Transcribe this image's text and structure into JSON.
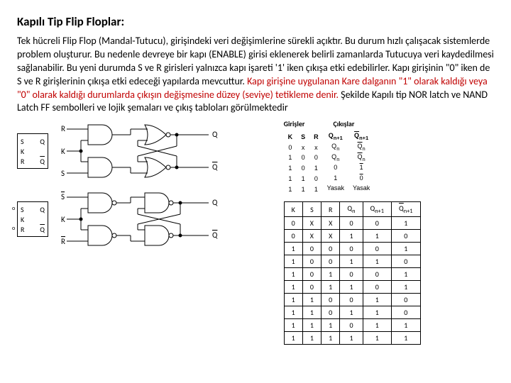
{
  "title": "Kapılı Tip Flip Floplar:",
  "paragraph_plain1": "Tek hücreli Flip Flop (Mandal-Tutucu), girişindeki veri değişimlerine sürekli açıktır. Bu durum hızlı çalışacak sistemlerde problem oluşturur. Bu nedenle devreye bir kapı (ENABLE) girisi eklenerek belirli zamanlarda Tutucuya veri kaydedilmesi sağlanabilir. Bu yeni durumda S ve R girisleri yalnızca kapı işareti '1' iken çıkışa etki edebilirler. Kapı girişinin \"0\" iken de S ve R girişlerinin çıkışa etki edeceği yapılarda mevcuttur. ",
  "paragraph_red": "Kapı girişine uygulanan Kare dalganın \"1\" olarak kaldığı veya \"0\" olarak kaldığı durumlarda çıkışın değişmesine düzey (seviye) tetikleme denir. ",
  "paragraph_plain2": "Şekilde Kapılı tip NOR latch ve NAND Latch FF sembolleri ve lojik şemaları ve çıkış tabloları görülmektedir",
  "symbol1": {
    "S": "S",
    "K": "K",
    "R": "R",
    "Q": "Q",
    "Qb": "Q"
  },
  "symbol2": {
    "S": "S",
    "K": "K",
    "R": "R",
    "Q": "Q",
    "Qb": "Q",
    "o": "o"
  },
  "circ1": {
    "R": "R",
    "K": "K",
    "S": "S",
    "Q": "Q",
    "Qb": "Q"
  },
  "circ2": {
    "Sb": "S",
    "K": "K",
    "Rb": "R",
    "Q": "Q",
    "Qb": "Q"
  },
  "tt_headers": {
    "inputs": "Girişler",
    "outputs": "Çıkışlar"
  },
  "tt_cols": {
    "K": "K",
    "S": "S",
    "R": "R",
    "Qn1": "Q",
    "n1a": "n+1",
    "Qn1b": "Q",
    "n1b": "n+1"
  },
  "tt_rows": [
    {
      "k": "0",
      "s": "x",
      "r": "x",
      "q": "Q",
      "qs": "n",
      "qb": "Q",
      "qbs": "n"
    },
    {
      "k": "1",
      "s": "0",
      "r": "0",
      "q": "Q",
      "qs": "n",
      "qb": "Q",
      "qbs": "n"
    },
    {
      "k": "1",
      "s": "0",
      "r": "1",
      "q": "0",
      "qs": "",
      "qb": "1",
      "qbs": ""
    },
    {
      "k": "1",
      "s": "1",
      "r": "0",
      "q": "1",
      "qs": "",
      "qb": "0",
      "qbs": ""
    },
    {
      "k": "1",
      "s": "1",
      "r": "1",
      "q": "Yasak",
      "qs": "",
      "qb": "Yasak",
      "qbs": ""
    }
  ],
  "big_cols": {
    "K": "K",
    "S": "S",
    "R": "R",
    "Qn": "Q",
    "Qns": "n",
    "Qn1": "Q",
    "Qn1s": "n+1"
  },
  "big_rows": [
    {
      "k": "0",
      "s": "X",
      "r": "X",
      "qn": "0",
      "qn1": "0",
      "qb": "1"
    },
    {
      "k": "0",
      "s": "X",
      "r": "X",
      "qn": "1",
      "qn1": "1",
      "qb": "0"
    },
    {
      "k": "1",
      "s": "0",
      "r": "0",
      "qn": "0",
      "qn1": "0",
      "qb": "1"
    },
    {
      "k": "1",
      "s": "0",
      "r": "0",
      "qn": "1",
      "qn1": "1",
      "qb": "0"
    },
    {
      "k": "1",
      "s": "0",
      "r": "1",
      "qn": "0",
      "qn1": "0",
      "qb": "1"
    },
    {
      "k": "1",
      "s": "0",
      "r": "1",
      "qn": "1",
      "qn1": "0",
      "qb": "1"
    },
    {
      "k": "1",
      "s": "1",
      "r": "0",
      "qn": "0",
      "qn1": "1",
      "qb": "0"
    },
    {
      "k": "1",
      "s": "1",
      "r": "0",
      "qn": "1",
      "qn1": "1",
      "qb": "0"
    },
    {
      "k": "1",
      "s": "1",
      "r": "1",
      "qn": "0",
      "qn1": "1",
      "qb": "1"
    },
    {
      "k": "1",
      "s": "1",
      "r": "1",
      "qn": "1",
      "qn1": "1",
      "qb": "1"
    }
  ]
}
